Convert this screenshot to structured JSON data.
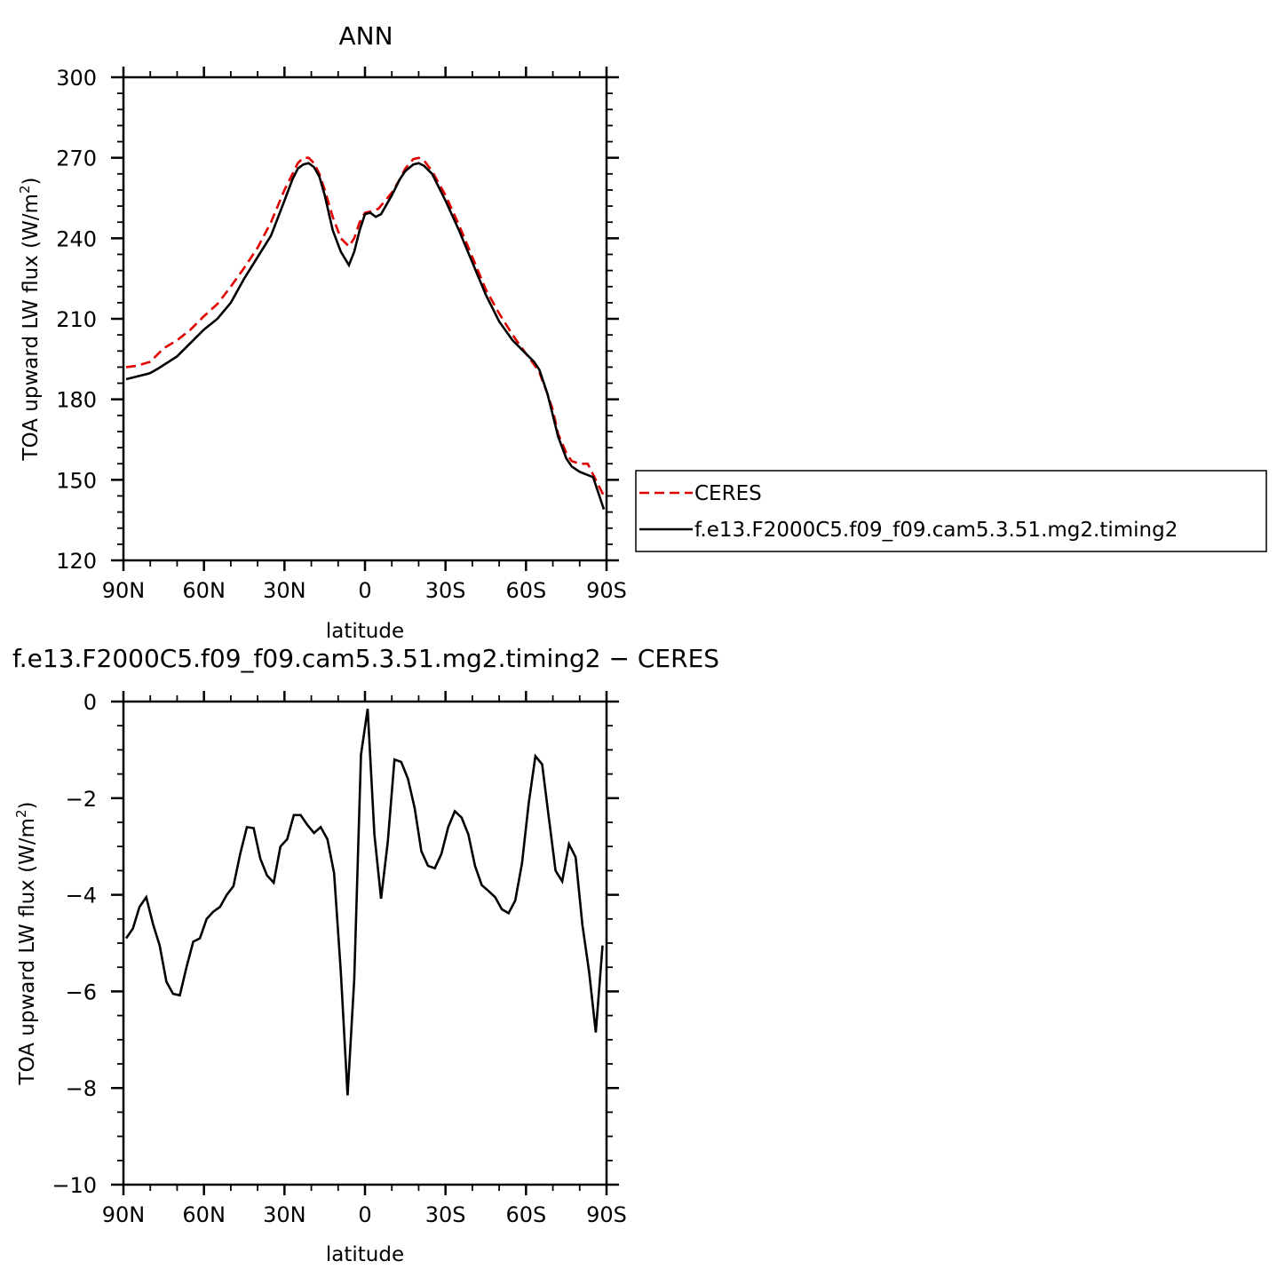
{
  "chart_data": [
    {
      "type": "line",
      "title": "ANN",
      "xlabel": "latitude",
      "ylabel": "TOA upward LW flux (W/m",
      "ylabel_sup": "2",
      "ylabel_close": ")",
      "xlim": [
        90,
        -90
      ],
      "ylim": [
        120,
        300
      ],
      "x_ticks": [
        90,
        60,
        30,
        0,
        -30,
        -60,
        -90
      ],
      "x_tick_labels": [
        "90N",
        "60N",
        "30N",
        "0",
        "30S",
        "60S",
        "90S"
      ],
      "y_ticks": [
        120,
        150,
        180,
        210,
        240,
        270,
        300
      ],
      "y_tick_labels": [
        "120",
        "150",
        "180",
        "210",
        "240",
        "270",
        "300"
      ],
      "legend_position": "right",
      "series": [
        {
          "name": "CERES",
          "color": "#e00000",
          "dash": "dashed",
          "x": [
            89,
            85,
            80,
            75,
            70,
            65,
            60,
            55,
            50,
            45,
            40,
            35,
            30,
            27,
            25,
            23,
            21,
            19,
            17,
            15,
            12,
            9,
            6,
            4,
            2,
            0,
            -2,
            -5,
            -10,
            -13,
            -15,
            -18,
            -20,
            -22,
            -25,
            -30,
            -35,
            -40,
            -45,
            -50,
            -55,
            -60,
            -63,
            -65,
            -68,
            -70,
            -72,
            -75,
            -77,
            -80,
            -83,
            -85,
            -87,
            -89
          ],
          "y": [
            192,
            192.5,
            194,
            199,
            202,
            206,
            211,
            215.5,
            222,
            229,
            236.5,
            246,
            258,
            264,
            268,
            270,
            270,
            268,
            264,
            258,
            248,
            240,
            237,
            240,
            246,
            249.5,
            250,
            251,
            257,
            262,
            266,
            269.5,
            270,
            269,
            265,
            256,
            245,
            233,
            221,
            212,
            204,
            197,
            193,
            190,
            182,
            176,
            167,
            160,
            157,
            156,
            156,
            152,
            148,
            144
          ]
        },
        {
          "name": "f.e13.F2000C5.f09_f09.cam5.3.51.mg2.timing2",
          "color": "#000000",
          "dash": "solid",
          "x": [
            89,
            85,
            81,
            80,
            77,
            70,
            65,
            60,
            55,
            50,
            45,
            40,
            35,
            30,
            27,
            25,
            23,
            21,
            19,
            17,
            15,
            12,
            9,
            6,
            4,
            2,
            0,
            -2,
            -4,
            -6,
            -10,
            -13,
            -15,
            -18,
            -20,
            -22,
            -25,
            -30,
            -35,
            -40,
            -45,
            -50,
            -55,
            -60,
            -63,
            -65,
            -68,
            -70,
            -72,
            -75,
            -77,
            -80,
            -85,
            -87,
            -89
          ],
          "y": [
            187.5,
            188.5,
            189.5,
            189.8,
            191.5,
            196,
            201,
            206,
            210,
            216,
            225,
            233,
            241,
            254,
            262,
            266,
            267.5,
            268,
            266.5,
            263,
            256,
            243,
            235,
            230,
            235,
            243,
            249,
            249.5,
            248,
            249,
            256,
            262,
            265,
            267.5,
            268,
            267,
            264,
            254,
            243,
            231,
            219,
            209,
            202,
            197,
            194,
            191,
            182,
            174,
            166,
            158,
            155,
            153,
            151,
            145,
            139
          ]
        }
      ]
    },
    {
      "type": "line",
      "title": "f.e13.F2000C5.f09_f09.cam5.3.51.mg2.timing2 − CERES",
      "xlabel": "latitude",
      "ylabel": "TOA upward LW flux (W/m",
      "ylabel_sup": "2",
      "ylabel_close": ")",
      "xlim": [
        90,
        -90
      ],
      "ylim": [
        -10,
        0
      ],
      "x_ticks": [
        90,
        60,
        30,
        0,
        -30,
        -60,
        -90
      ],
      "x_tick_labels": [
        "90N",
        "60N",
        "30N",
        "0",
        "30S",
        "60S",
        "90S"
      ],
      "y_ticks": [
        0,
        -2,
        -4,
        -6,
        -8,
        -10
      ],
      "y_tick_labels": [
        "0",
        "−2",
        "−4",
        "−6",
        "−8",
        "−10"
      ],
      "series": [
        {
          "color": "#000000",
          "dash": "solid",
          "x": [
            89,
            86.5,
            84,
            81.5,
            79,
            76.5,
            74,
            71.5,
            69,
            66.5,
            64,
            61.5,
            59,
            56.5,
            54,
            51.5,
            49,
            46.5,
            44,
            41.5,
            39,
            36.5,
            34,
            31.5,
            29,
            26.5,
            24,
            21.5,
            19,
            16.5,
            14,
            11.5,
            9,
            6.5,
            4,
            1.5,
            -1,
            -3.5,
            -6,
            -8.5,
            -11,
            -13.5,
            -16,
            -18.5,
            -21,
            -23.5,
            -26,
            -28.5,
            -31,
            -33.5,
            -36,
            -38.5,
            -41,
            -43.5,
            -46,
            -48.5,
            -51,
            -53.5,
            -56,
            -58.5,
            -61,
            -63.5,
            -66,
            -68.5,
            -71,
            -73.5,
            -76,
            -78.5,
            -81,
            -83.5,
            -86,
            -88.5
          ],
          "y": [
            -4.9,
            -4.7,
            -4.25,
            -4.05,
            -4.6,
            -5.05,
            -5.8,
            -6.05,
            -6.08,
            -5.5,
            -4.97,
            -4.9,
            -4.5,
            -4.35,
            -4.25,
            -4.0,
            -3.82,
            -3.15,
            -2.6,
            -2.62,
            -3.25,
            -3.6,
            -3.75,
            -3.0,
            -2.85,
            -2.35,
            -2.35,
            -2.55,
            -2.72,
            -2.6,
            -2.85,
            -3.55,
            -5.6,
            -8.15,
            -5.75,
            -1.1,
            -0.15,
            -2.75,
            -4.08,
            -2.9,
            -1.2,
            -1.25,
            -1.6,
            -2.2,
            -3.1,
            -3.4,
            -3.45,
            -3.15,
            -2.6,
            -2.27,
            -2.4,
            -2.75,
            -3.4,
            -3.8,
            -3.92,
            -4.05,
            -4.3,
            -4.38,
            -4.12,
            -3.35,
            -2.1,
            -1.13,
            -1.3,
            -2.4,
            -3.5,
            -3.72,
            -2.95,
            -3.22,
            -4.62,
            -5.6,
            -6.85,
            -5.05
          ]
        }
      ]
    }
  ]
}
